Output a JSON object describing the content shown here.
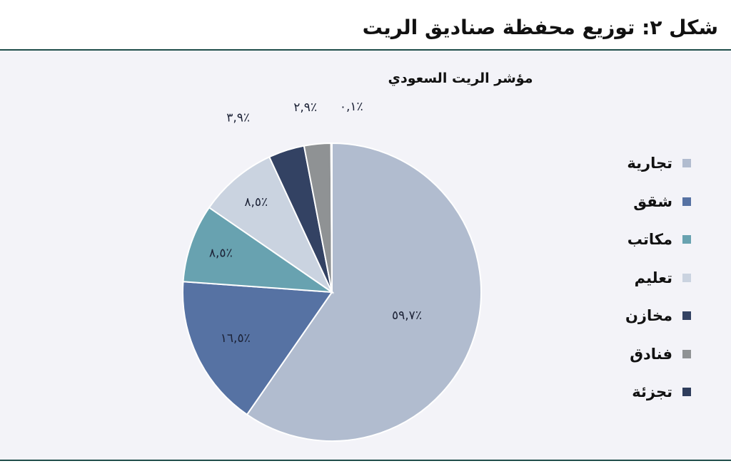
{
  "figure_title": "شكل ٢: توزيع محفظة صناديق الريت",
  "chart_data": {
    "type": "pie",
    "title": "مؤشر الريت السعودي",
    "legend_position": "right",
    "slices": [
      {
        "name": "تجارية",
        "value": 59.7,
        "label": "٪٥٩,٧",
        "color": "#b1bccf"
      },
      {
        "name": "شقق",
        "value": 16.5,
        "label": "٪١٦,٥",
        "color": "#5672a3"
      },
      {
        "name": "مكاتب",
        "value": 8.5,
        "label": "٪٨,٥",
        "color": "#68a2b0"
      },
      {
        "name": "تعليم",
        "value": 8.5,
        "label": "٪٨,٥",
        "color": "#cad3e0"
      },
      {
        "name": "مخازن",
        "value": 3.9,
        "label": "٪٣,٩",
        "color": "#334263"
      },
      {
        "name": "فنادق",
        "value": 2.9,
        "label": "٪٢,٩",
        "color": "#8f9294"
      },
      {
        "name": "تجزئة",
        "value": 0.1,
        "label": "٪٠,١",
        "color": "#2f3d5c"
      }
    ]
  }
}
